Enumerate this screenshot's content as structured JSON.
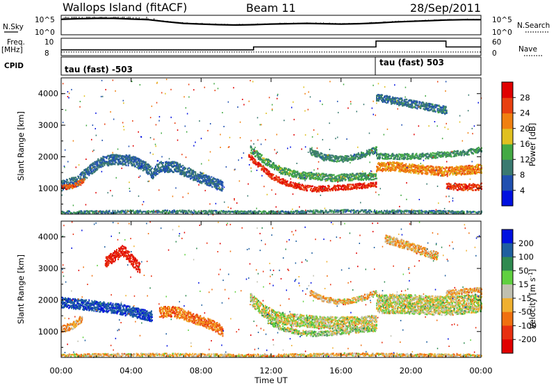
{
  "header": {
    "title": "Wallops Island (fitACF)",
    "beam": "Beam 11",
    "date": "28/Sep/2011"
  },
  "noise_panel": {
    "left_label": "N.Sky",
    "right_label": "N.Search",
    "left_ticks": [
      "10^5",
      "10^0"
    ],
    "right_ticks": [
      "10^5",
      "10^0"
    ]
  },
  "freq_panel": {
    "left_label": "Freq.",
    "left_unit": "[MHz]",
    "right_label": "Nave",
    "left_ticks": [
      "10",
      "8"
    ],
    "right_ticks": [
      "60",
      "0"
    ]
  },
  "cpid_panel": {
    "label": "CPID",
    "left_text": "tau (fast) -503",
    "right_text": "tau (fast) 503"
  },
  "power_panel": {
    "ylabel": "Slant Range [km]",
    "yticks": [
      "1000",
      "2000",
      "3000",
      "4000"
    ],
    "colorbar_label": "Power [dB]",
    "colorbar_ticks": [
      "4",
      "8",
      "12",
      "16",
      "20",
      "24",
      "28"
    ],
    "colors": [
      "#0010e0",
      "#2050b0",
      "#3a7a70",
      "#44aa44",
      "#e0c020",
      "#f08010",
      "#e84010",
      "#e00000"
    ]
  },
  "velocity_panel": {
    "ylabel": "Slant Range [km]",
    "yticks": [
      "1000",
      "2000",
      "3000",
      "4000"
    ],
    "colorbar_label_main": "Velocity [m s",
    "colorbar_label_sup": "-1",
    "colorbar_label_end": "]",
    "colorbar_ticks": [
      "200",
      "100",
      "50",
      "15",
      "-15",
      "-50",
      "-100",
      "-200"
    ],
    "colors": [
      "#0010e0",
      "#1f5fa0",
      "#2f8a50",
      "#60d040",
      "#c0c0b0",
      "#f0b030",
      "#f07010",
      "#e83010",
      "#e00000"
    ]
  },
  "x_axis": {
    "ticks": [
      "00:00",
      "04:00",
      "08:00",
      "12:00",
      "16:00",
      "20:00",
      "00:00"
    ],
    "label": "Time UT"
  },
  "chart_data": [
    {
      "type": "line",
      "name": "noise",
      "x_range": [
        0,
        24
      ],
      "x": [
        0,
        1,
        2,
        3,
        4,
        5,
        6,
        7,
        8,
        9,
        10,
        11,
        12,
        13,
        14,
        15,
        16,
        17,
        18,
        19,
        20,
        21,
        22,
        23,
        24
      ],
      "series": [
        {
          "values": [
            4.2,
            4.4,
            4.5,
            4.5,
            4.3,
            4.1,
            3.5,
            3.0,
            2.8,
            2.6,
            2.5,
            2.6,
            2.8,
            2.9,
            3.0,
            2.9,
            2.8,
            2.9,
            3.1,
            3.4,
            3.6,
            3.8,
            4.0,
            4.1,
            4.1
          ]
        }
      ],
      "ylim": [
        0,
        5
      ]
    },
    {
      "type": "line",
      "name": "frequency-nave",
      "x_range": [
        0,
        24
      ],
      "series": [
        {
          "x": [
            0,
            11,
            11,
            18,
            18,
            22,
            22,
            24
          ],
          "values": [
            8.6,
            8.6,
            9.0,
            9.0,
            9.8,
            9.8,
            9.0,
            9.0
          ]
        },
        {
          "x": [
            0,
            24
          ],
          "values": [
            8.3,
            8.3
          ]
        }
      ],
      "ylim": [
        8,
        10
      ]
    },
    {
      "type": "heatmap",
      "name": "power",
      "x_range": [
        0,
        24
      ],
      "ylim": [
        180,
        4500
      ],
      "zlim": [
        0,
        32
      ],
      "yticks": [
        1000,
        2000,
        3000,
        4000
      ],
      "bands": [
        {
          "x": [
            0.0,
            0.9,
            1.5,
            2.2,
            3.0,
            4.0,
            4.8,
            5.2,
            5.6,
            6.5,
            7.5,
            8.5,
            9.2
          ],
          "y": [
            1100,
            1250,
            1550,
            1850,
            1950,
            1900,
            1700,
            1500,
            1700,
            1700,
            1450,
            1250,
            1100
          ],
          "w": 300,
          "z": 8
        },
        {
          "x": [
            0.0,
            0.7,
            1.3
          ],
          "y": [
            1050,
            1100,
            1300
          ],
          "w": 130,
          "z": 25
        },
        {
          "x": [
            10.7,
            11.4,
            12.0,
            12.8,
            13.5,
            14.5,
            16.0,
            17.0,
            18.0
          ],
          "y": [
            2050,
            1700,
            1400,
            1200,
            1080,
            1000,
            1050,
            1100,
            1150
          ],
          "w": 160,
          "z": 28
        },
        {
          "x": [
            10.8,
            11.6,
            12.5,
            13.5,
            14.5,
            15.5,
            16.5,
            17.5,
            18.0
          ],
          "y": [
            2250,
            1900,
            1600,
            1450,
            1400,
            1350,
            1380,
            1400,
            1420
          ],
          "w": 200,
          "z": 13
        },
        {
          "x": [
            14.2,
            15.0,
            16.0,
            17.0,
            18.0
          ],
          "y": [
            2200,
            2000,
            1950,
            2050,
            2250
          ],
          "w": 180,
          "z": 11
        },
        {
          "x": [
            18.0,
            19.0,
            20.0,
            21.0,
            22.0,
            23.0,
            24.0
          ],
          "y": [
            1700,
            1720,
            1650,
            1600,
            1550,
            1600,
            1650
          ],
          "w": 260,
          "z": 22
        },
        {
          "x": [
            18.0,
            19.5,
            21.0,
            22.0,
            23.0,
            24.0
          ],
          "y": [
            2050,
            2030,
            2050,
            2100,
            2150,
            2250
          ],
          "w": 160,
          "z": 12
        },
        {
          "x": [
            22.0,
            23.0,
            24.0
          ],
          "y": [
            1100,
            1050,
            1080
          ],
          "w": 190,
          "z": 27
        },
        {
          "x": [
            18.0,
            19.0,
            20.0,
            21.0,
            22.0
          ],
          "y": [
            3900,
            3800,
            3700,
            3600,
            3500
          ],
          "w": 220,
          "z": 9
        },
        {
          "x": [
            0.0,
            4.0,
            8.0,
            12.0,
            16.0,
            20.0,
            24.0
          ],
          "y": [
            260,
            290,
            280,
            260,
            300,
            280,
            260
          ],
          "w": 80,
          "z": 10
        }
      ]
    },
    {
      "type": "heatmap",
      "name": "velocity",
      "x_range": [
        0,
        24
      ],
      "ylim": [
        180,
        4500
      ],
      "zlim": [
        -250,
        250
      ],
      "yticks": [
        1000,
        2000,
        3000,
        4000
      ],
      "bands": [
        {
          "x": [
            0.0,
            0.8,
            1.6,
            2.4,
            3.2,
            4.0,
            4.8,
            5.2
          ],
          "y": [
            1950,
            1900,
            1850,
            1800,
            1750,
            1650,
            1550,
            1500
          ],
          "w": 300,
          "z": 180
        },
        {
          "x": [
            0.0,
            0.6,
            1.2
          ],
          "y": [
            1100,
            1200,
            1450
          ],
          "w": 200,
          "z": -40
        },
        {
          "x": [
            5.6,
            6.5,
            7.5,
            8.5,
            9.2
          ],
          "y": [
            1650,
            1650,
            1450,
            1250,
            1050
          ],
          "w": 300,
          "z": -70
        },
        {
          "x": [
            2.5,
            3.5,
            4.5
          ],
          "y": [
            3200,
            3600,
            3000
          ],
          "w": 320,
          "z": -180
        },
        {
          "x": [
            10.8,
            11.5,
            12.2,
            13.0,
            14.0,
            15.0,
            16.0,
            17.0,
            18.0
          ],
          "y": [
            2050,
            1700,
            1500,
            1400,
            1350,
            1300,
            1300,
            1300,
            1350
          ],
          "w": 350,
          "z": 0
        },
        {
          "x": [
            11.8,
            12.5,
            13.5,
            14.5,
            15.5,
            16.5,
            17.5,
            18.0
          ],
          "y": [
            1350,
            1150,
            1000,
            950,
            980,
            1050,
            1100,
            1100
          ],
          "w": 150,
          "z": 20
        },
        {
          "x": [
            14.2,
            15.0,
            16.0,
            17.0,
            18.0
          ],
          "y": [
            2250,
            2050,
            1950,
            2050,
            2250
          ],
          "w": 160,
          "z": -30
        },
        {
          "x": [
            18.0,
            19.5,
            21.0,
            22.5,
            24.0
          ],
          "y": [
            1900,
            1900,
            1850,
            1850,
            1950
          ],
          "w": 550,
          "z": 0
        },
        {
          "x": [
            22.0,
            23.0,
            24.0
          ],
          "y": [
            2250,
            2300,
            2350
          ],
          "w": 140,
          "z": -40
        },
        {
          "x": [
            18.5,
            19.5,
            20.5,
            21.5
          ],
          "y": [
            3950,
            3800,
            3600,
            3400
          ],
          "w": 240,
          "z": -35
        },
        {
          "x": [
            0.0,
            4.0,
            8.0,
            12.0,
            16.0,
            20.0,
            24.0
          ],
          "y": [
            260,
            290,
            280,
            260,
            300,
            280,
            260
          ],
          "w": 80,
          "z": -25
        }
      ]
    }
  ]
}
